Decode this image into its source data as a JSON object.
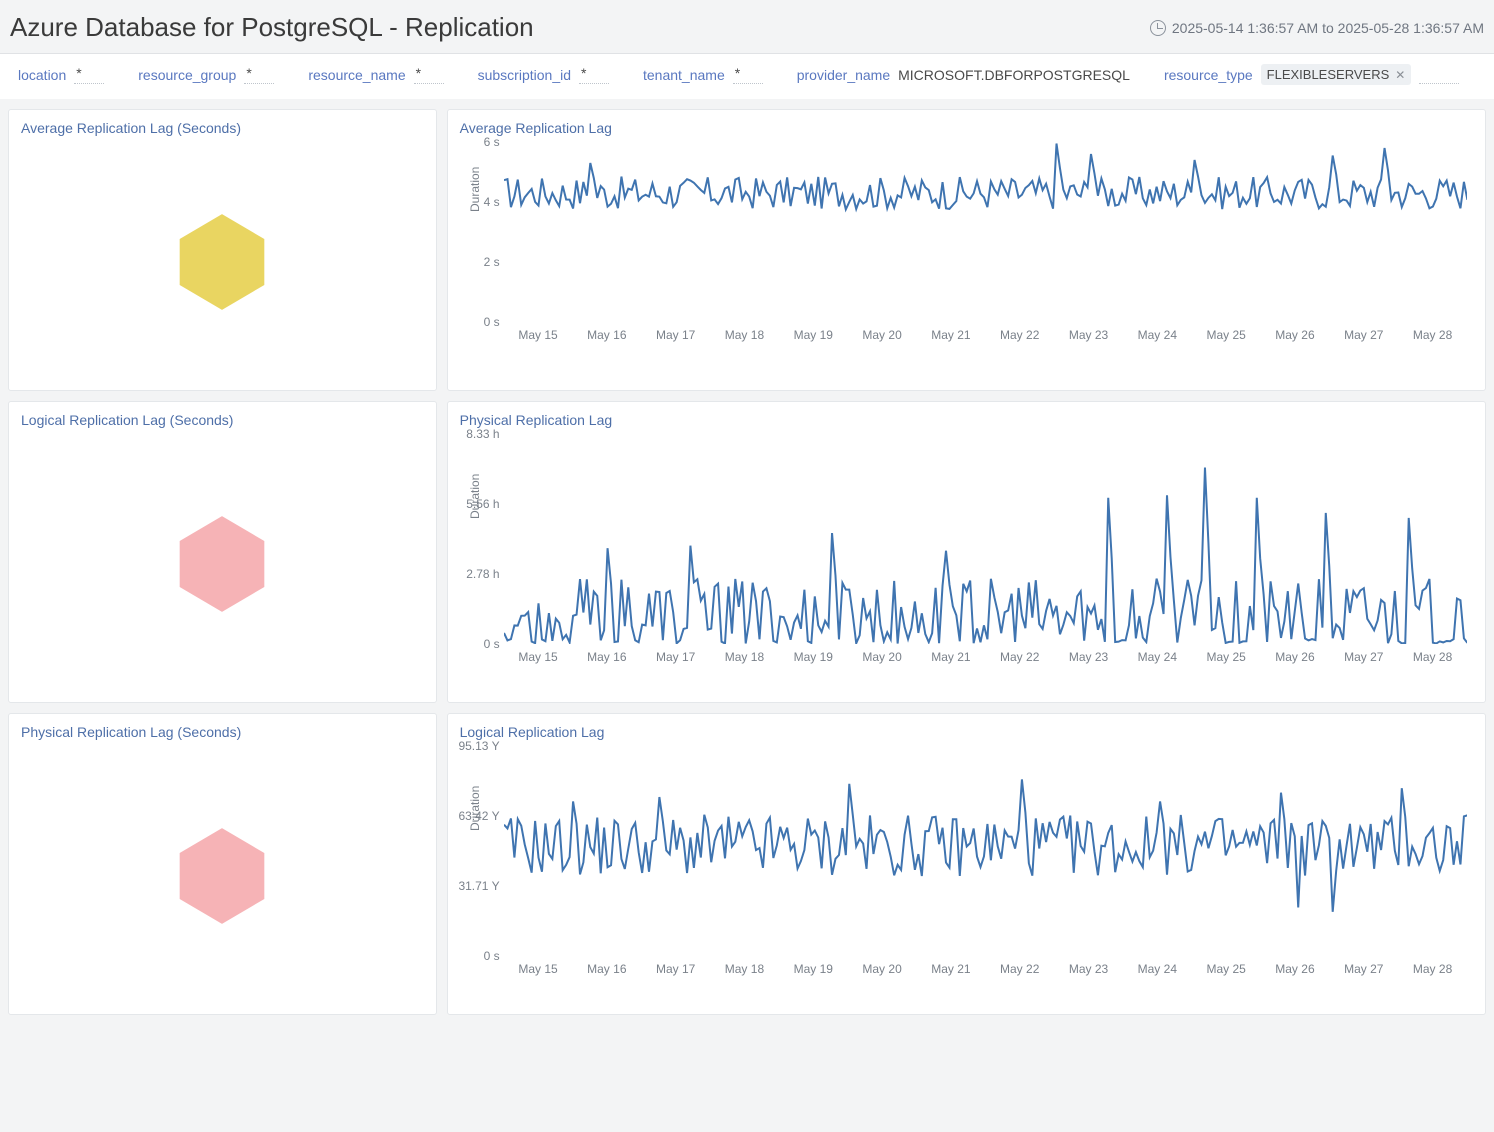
{
  "header": {
    "title": "Azure Database for PostgreSQL - Replication",
    "time_range": "2025-05-14 1:36:57 AM to 2025-05-28 1:36:57 AM"
  },
  "filters": [
    {
      "label": "location",
      "value": "*",
      "type": "text"
    },
    {
      "label": "resource_group",
      "value": "*",
      "type": "text"
    },
    {
      "label": "resource_name",
      "value": "*",
      "type": "text"
    },
    {
      "label": "subscription_id",
      "value": "*",
      "type": "text"
    },
    {
      "label": "tenant_name",
      "value": "*",
      "type": "text"
    },
    {
      "label": "provider_name",
      "value": "MICROSOFT.DBFORPOSTGRESQL",
      "type": "plain"
    },
    {
      "label": "resource_type",
      "value": "FLEXIBLESERVERS",
      "type": "tag"
    }
  ],
  "panels": {
    "hex1": {
      "title": "Average Replication Lag (Seconds)",
      "color": "#e9d561"
    },
    "hex2": {
      "title": "Logical Replication Lag (Seconds)",
      "color": "#f6b3b6"
    },
    "hex3": {
      "title": "Physical Replication Lag (Seconds)",
      "color": "#f6b3b6"
    }
  },
  "charts": {
    "avg": {
      "title": "Average Replication Lag",
      "y_label": "Duration",
      "line_color": "#3f74b0",
      "bg_color": "#ffffff",
      "y_ticks": [
        {
          "label": "6 s",
          "pos": 0.0
        },
        {
          "label": "4 s",
          "pos": 0.333
        },
        {
          "label": "2 s",
          "pos": 0.667
        },
        {
          "label": "0 s",
          "pos": 1.0
        }
      ],
      "x_ticks": [
        "May 15",
        "May 16",
        "May 17",
        "May 18",
        "May 19",
        "May 20",
        "May 21",
        "May 22",
        "May 23",
        "May 24",
        "May 25",
        "May 26",
        "May 27",
        "May 28"
      ],
      "y_domain": [
        0,
        6
      ],
      "series_base": 4.3,
      "series_noise": 0.55,
      "series_spikes": [
        [
          25,
          5.3
        ],
        [
          160,
          5.95
        ],
        [
          170,
          5.6
        ],
        [
          200,
          5.4
        ],
        [
          240,
          5.55
        ],
        [
          255,
          5.8
        ]
      ],
      "n_points": 280
    },
    "phys": {
      "title": "Physical Replication Lag",
      "y_label": "Duration",
      "line_color": "#3f74b0",
      "bg_color": "#ffffff",
      "y_ticks": [
        {
          "label": "8.33 h",
          "pos": 0.0
        },
        {
          "label": "5.56 h",
          "pos": 0.333
        },
        {
          "label": "2.78 h",
          "pos": 0.667
        },
        {
          "label": "0 s",
          "pos": 1.0
        }
      ],
      "x_ticks": [
        "May 15",
        "May 16",
        "May 17",
        "May 18",
        "May 19",
        "May 20",
        "May 21",
        "May 22",
        "May 23",
        "May 24",
        "May 25",
        "May 26",
        "May 27",
        "May 28"
      ],
      "y_domain": [
        0,
        8.33
      ],
      "series_base": 1.0,
      "series_noise": 1.6,
      "series_floor": 0,
      "series_spikes": [
        [
          30,
          3.8
        ],
        [
          54,
          3.9
        ],
        [
          95,
          4.4
        ],
        [
          128,
          3.7
        ],
        [
          175,
          5.8
        ],
        [
          192,
          5.9
        ],
        [
          203,
          7.0
        ],
        [
          218,
          5.8
        ],
        [
          238,
          5.2
        ],
        [
          262,
          5.0
        ]
      ],
      "n_points": 280
    },
    "log": {
      "title": "Logical Replication Lag",
      "y_label": "Duration",
      "line_color": "#3f74b0",
      "bg_color": "#ffffff",
      "y_ticks": [
        {
          "label": "95.13 Y",
          "pos": 0.0
        },
        {
          "label": "63.42 Y",
          "pos": 0.333
        },
        {
          "label": "31.71 Y",
          "pos": 0.667
        },
        {
          "label": "0 s",
          "pos": 1.0
        }
      ],
      "x_ticks": [
        "May 15",
        "May 16",
        "May 17",
        "May 18",
        "May 19",
        "May 20",
        "May 21",
        "May 22",
        "May 23",
        "May 24",
        "May 25",
        "May 26",
        "May 27",
        "May 28"
      ],
      "y_domain": [
        0,
        95.13
      ],
      "series_base": 50,
      "series_noise": 14,
      "series_spikes": [
        [
          20,
          70
        ],
        [
          45,
          72
        ],
        [
          100,
          78
        ],
        [
          150,
          80
        ],
        [
          190,
          70
        ],
        [
          225,
          74
        ],
        [
          260,
          76
        ]
      ],
      "series_dips": [
        [
          230,
          22
        ],
        [
          240,
          20
        ]
      ],
      "n_points": 280
    }
  }
}
